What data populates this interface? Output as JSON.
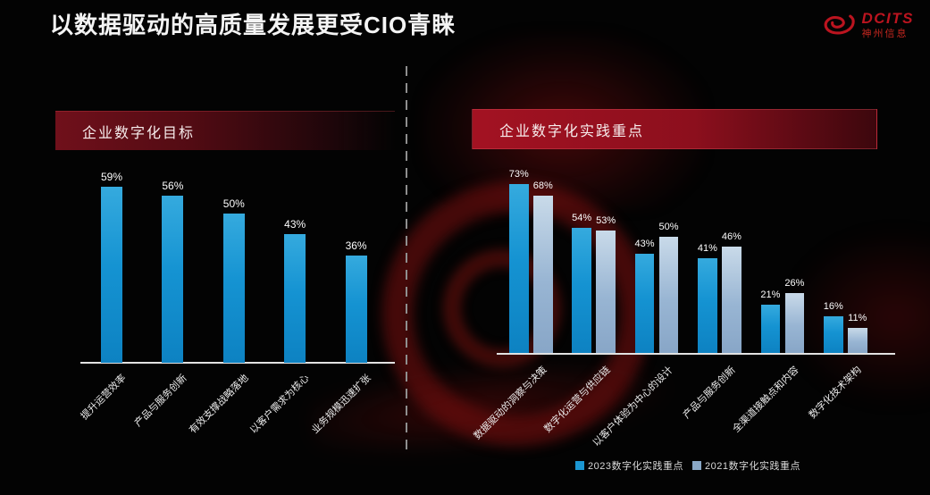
{
  "header": {
    "title": "以数据驱动的高质量发展更受CIO青睐",
    "logo": {
      "brand": "DCITS",
      "company": "神州信息"
    }
  },
  "colors": {
    "background": "#030303",
    "accent_red": "#a31222",
    "bar_blue": "#1b96d2",
    "bar_steel": "#98b5d3",
    "axis": "#e2e2e2",
    "title_text": "#f4f4f4"
  },
  "legend": {
    "items": [
      {
        "label": "2023数字化实践重点",
        "color": "#1b96d2"
      },
      {
        "label": "2021数字化实践重点",
        "color": "#8aa8c6"
      }
    ]
  },
  "chart_data": [
    {
      "type": "bar",
      "title": "企业数字化目标",
      "categories": [
        "提升运营效率",
        "产品与服务创新",
        "有效支撑战略落地",
        "以客户需求为核心",
        "业务规模迅速扩张"
      ],
      "values": [
        59,
        56,
        50,
        43,
        36
      ],
      "value_labels": [
        "59%",
        "56%",
        "50%",
        "43%",
        "36%"
      ],
      "unit": "%",
      "xlabel": "",
      "ylabel": "",
      "ylim": [
        0,
        65
      ],
      "grid": false,
      "bar_color": "#1b96d2",
      "value_labels_shown": true,
      "category_label_rotation": 45
    },
    {
      "type": "bar",
      "title": "企业数字化实践重点",
      "categories": [
        "数据驱动的洞察与决策",
        "数字化运营与供应链",
        "以客户体验为中心的设计",
        "产品与服务创新",
        "全渠道接触点和内容",
        "数字化技术架构"
      ],
      "series": [
        {
          "name": "2023数字化实践重点",
          "color": "#1b96d2",
          "values": [
            73,
            54,
            43,
            41,
            21,
            16
          ]
        },
        {
          "name": "2021数字化实践重点",
          "color": "#98b5d3",
          "values": [
            68,
            53,
            50,
            46,
            26,
            11
          ]
        }
      ],
      "unit": "%",
      "xlabel": "",
      "ylabel": "",
      "ylim": [
        0,
        80
      ],
      "grid": false,
      "legend_position": "bottom",
      "value_labels_shown": true,
      "category_label_rotation": 45
    }
  ]
}
